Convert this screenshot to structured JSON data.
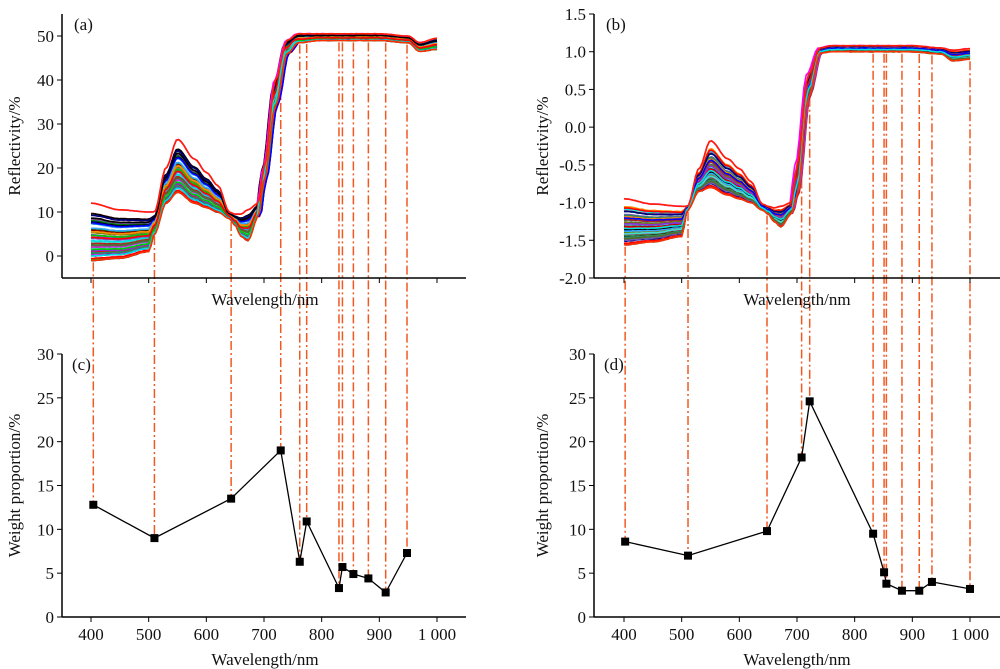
{
  "figure": {
    "dashline_color": "#f05a22",
    "curve_colors": [
      "#000000",
      "#00c800",
      "#ff0000",
      "#0000ff",
      "#00e0e0",
      "#ff00ff",
      "#808000",
      "#800000",
      "#008000",
      "#000080",
      "#33aaff",
      "#8a2be2",
      "#ff8c00",
      "#2e8b57",
      "#6a5acd",
      "#b22222",
      "#40e0d0",
      "#556b2f"
    ]
  },
  "chart_data": [
    {
      "id": "a",
      "panel_label": "(a)",
      "type": "line",
      "title": "",
      "xlabel": "Wavelength/nm",
      "ylabel": "Reflectivity/%",
      "xlim": [
        350,
        1050
      ],
      "ylim": [
        -5,
        55
      ],
      "x_ticks": [
        400,
        500,
        600,
        700,
        800,
        900,
        1000
      ],
      "x_tick_labels_shown": false,
      "y_ticks": [
        0,
        10,
        20,
        30,
        40,
        50
      ],
      "y_tick_labels": [
        "0",
        "10",
        "20",
        "30",
        "40",
        "50"
      ],
      "series_description": "Many overlapping reflectance spectra (400-1000 nm)",
      "envelope": {
        "x": [
          400,
          450,
          500,
          510,
          530,
          550,
          580,
          600,
          620,
          640,
          650,
          660,
          672,
          690,
          700,
          720,
          740,
          760,
          800,
          900,
          950,
          970,
          1000
        ],
        "upper": [
          12,
          10.5,
          10,
          10,
          20,
          26.5,
          22,
          19,
          16,
          10,
          9.5,
          9.5,
          10.5,
          12,
          20,
          40,
          49,
          50.5,
          50.5,
          50.5,
          50,
          48.5,
          49.5
        ],
        "lower": [
          -1,
          -0.5,
          1,
          5,
          12,
          14.5,
          12,
          11,
          10,
          8.5,
          7,
          4.5,
          3.5,
          9,
          17,
          34,
          46,
          48.5,
          49,
          49,
          48.5,
          46.5,
          47
        ]
      },
      "selected_wavelengths": [
        404,
        510,
        643,
        729,
        762,
        774,
        830,
        836,
        855,
        881,
        911,
        948
      ]
    },
    {
      "id": "b",
      "panel_label": "(b)",
      "type": "line",
      "title": "",
      "xlabel": "Wavelength/nm",
      "ylabel": "Reflectivity/%",
      "xlim": [
        350,
        1050
      ],
      "ylim": [
        -2.0,
        1.5
      ],
      "x_ticks": [
        400,
        500,
        600,
        700,
        800,
        900,
        1000
      ],
      "x_tick_labels_shown": false,
      "y_ticks": [
        -2.0,
        -1.5,
        -1.0,
        -0.5,
        0.0,
        0.5,
        1.0,
        1.5
      ],
      "y_tick_labels": [
        "-2.0",
        "-1.5",
        "-1.0",
        "-0.5",
        "0.0",
        "0.5",
        "1.0",
        "1.5"
      ],
      "series_description": "Many overlapping transformed reflectance spectra (400-1000 nm)",
      "envelope": {
        "x": [
          400,
          450,
          500,
          510,
          530,
          550,
          580,
          600,
          620,
          640,
          650,
          660,
          672,
          690,
          700,
          720,
          740,
          760,
          800,
          900,
          950,
          970,
          1000
        ],
        "upper": [
          -0.95,
          -1.02,
          -1.05,
          -1.05,
          -0.55,
          -0.18,
          -0.42,
          -0.55,
          -0.72,
          -1.02,
          -1.05,
          -1.07,
          -1.05,
          -1.0,
          -0.5,
          0.7,
          1.05,
          1.08,
          1.08,
          1.08,
          1.05,
          1.02,
          1.04
        ],
        "lower": [
          -1.56,
          -1.52,
          -1.45,
          -1.1,
          -0.85,
          -0.8,
          -0.9,
          -0.95,
          -1.0,
          -1.1,
          -1.15,
          -1.25,
          -1.32,
          -1.15,
          -0.9,
          0.4,
          0.98,
          1.0,
          1.0,
          1.0,
          0.97,
          0.88,
          0.9
        ]
      },
      "selected_wavelengths": [
        402,
        511,
        648,
        708,
        722,
        832,
        851,
        855,
        882,
        912,
        934,
        1000
      ]
    },
    {
      "id": "c",
      "panel_label": "(c)",
      "type": "line",
      "title": "",
      "xlabel": "Wavelength/nm",
      "ylabel": "Weight proportion/%",
      "xlim": [
        350,
        1050
      ],
      "ylim": [
        0,
        30
      ],
      "x_ticks": [
        400,
        500,
        600,
        700,
        800,
        900,
        1000
      ],
      "x_tick_labels": [
        "400",
        "500",
        "600",
        "700",
        "800",
        "900",
        "1 000"
      ],
      "y_ticks": [
        0,
        5,
        10,
        15,
        20,
        25,
        30
      ],
      "y_tick_labels": [
        "0",
        "5",
        "10",
        "15",
        "20",
        "25",
        "30"
      ],
      "marker": "square",
      "x": [
        404,
        510,
        643,
        729,
        762,
        774,
        830,
        836,
        855,
        881,
        911,
        948
      ],
      "values": [
        12.8,
        9.0,
        13.5,
        19.0,
        6.3,
        10.9,
        3.3,
        5.7,
        4.9,
        4.4,
        2.8,
        7.3
      ]
    },
    {
      "id": "d",
      "panel_label": "(d)",
      "type": "line",
      "title": "",
      "xlabel": "Wavelength/nm",
      "ylabel": "Weight proportion/%",
      "xlim": [
        350,
        1050
      ],
      "ylim": [
        0,
        30
      ],
      "x_ticks": [
        400,
        500,
        600,
        700,
        800,
        900,
        1000
      ],
      "x_tick_labels": [
        "400",
        "500",
        "600",
        "700",
        "800",
        "900",
        "1 000"
      ],
      "y_ticks": [
        0,
        5,
        10,
        15,
        20,
        25,
        30
      ],
      "y_tick_labels": [
        "0",
        "5",
        "10",
        "15",
        "20",
        "25",
        "30"
      ],
      "marker": "square",
      "x": [
        402,
        511,
        648,
        708,
        722,
        832,
        851,
        855,
        882,
        912,
        934,
        1000
      ],
      "values": [
        8.6,
        7.0,
        9.8,
        18.2,
        24.6,
        9.5,
        5.1,
        3.8,
        3.0,
        3.0,
        4.0,
        3.2
      ]
    }
  ]
}
